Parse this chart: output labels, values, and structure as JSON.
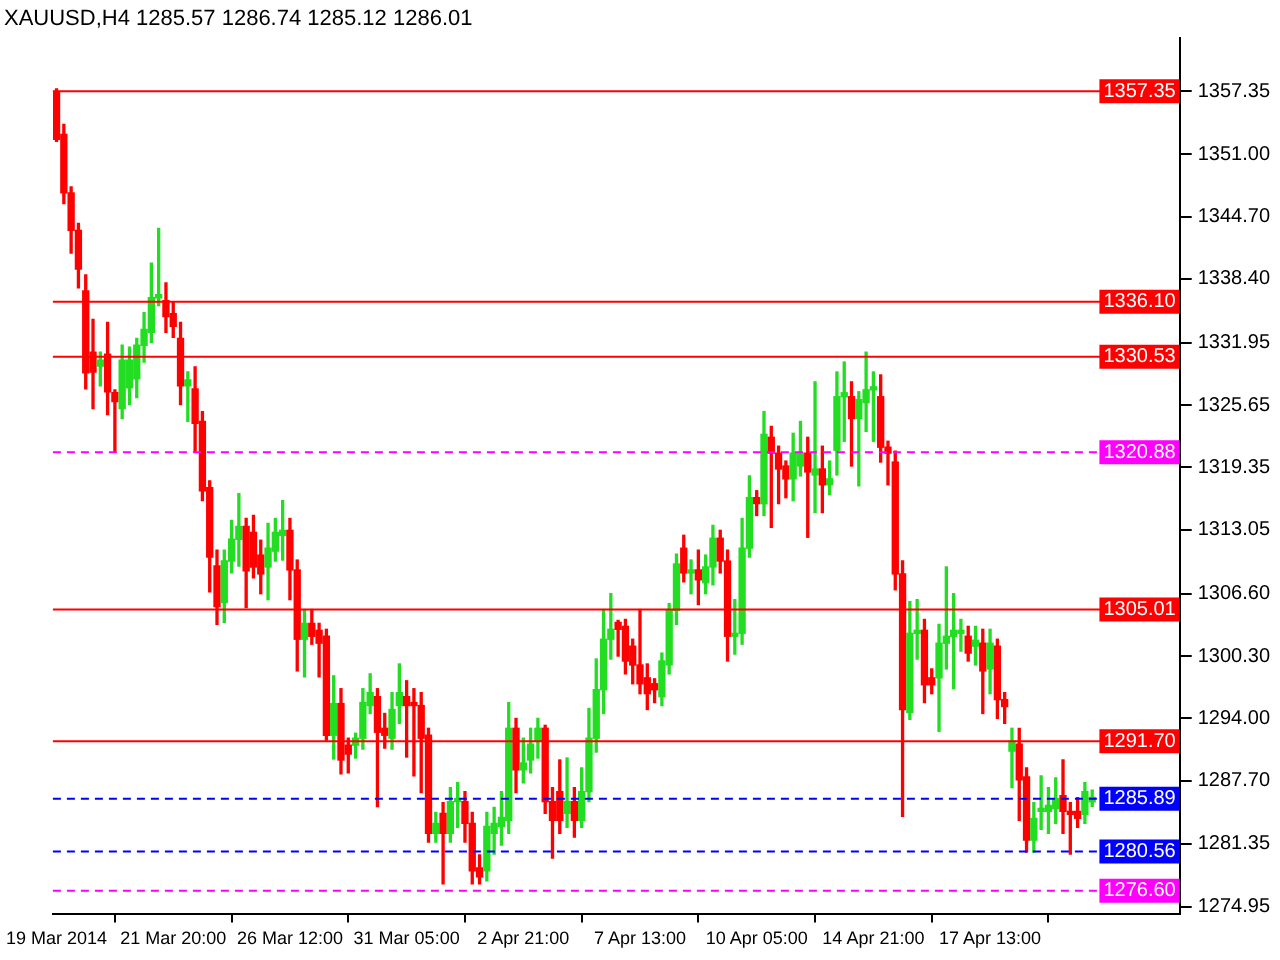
{
  "chart_data": {
    "type": "candlestick",
    "title": "XAUUSD,H4 1285.57 1286.74 1285.12 1286.01",
    "categories": [
      "19 Mar 2014",
      null,
      null,
      null,
      null,
      null,
      null,
      null,
      null,
      null,
      null,
      null,
      null,
      null,
      null,
      null,
      "21 Mar 20:00",
      null,
      null,
      null,
      null,
      null,
      null,
      null,
      null,
      null,
      null,
      null,
      null,
      null,
      null,
      null,
      "26 Mar 12:00",
      null,
      null,
      null,
      null,
      null,
      null,
      null,
      null,
      null,
      null,
      null,
      null,
      null,
      null,
      null,
      "31 Mar 05:00",
      null,
      null,
      null,
      null,
      null,
      null,
      null,
      null,
      null,
      null,
      null,
      null,
      null,
      null,
      null,
      "2 Apr 21:00",
      null,
      null,
      null,
      null,
      null,
      null,
      null,
      null,
      null,
      null,
      null,
      null,
      null,
      null,
      null,
      "7 Apr 13:00",
      null,
      null,
      null,
      null,
      null,
      null,
      null,
      null,
      null,
      null,
      null,
      null,
      null,
      null,
      null,
      "10 Apr 05:00",
      null,
      null,
      null,
      null,
      null,
      null,
      null,
      null,
      null,
      null,
      null,
      null,
      null,
      null,
      null,
      "14 Apr 21:00",
      null,
      null,
      null,
      null,
      null,
      null,
      null,
      null,
      null,
      null,
      null,
      null,
      null,
      null,
      null,
      "17 Apr 13:00",
      null,
      null,
      null,
      null,
      null,
      null,
      null,
      null,
      null,
      null,
      null,
      null,
      null,
      null
    ],
    "ohlc": [
      [
        1357.3,
        1357.6,
        1352.3,
        1352.5
      ],
      [
        1353.0,
        1354.0,
        1346.0,
        1347.1
      ],
      [
        1347.1,
        1347.7,
        1341.0,
        1343.3
      ],
      [
        1343.3,
        1344.0,
        1337.5,
        1339.4
      ],
      [
        1337.2,
        1338.8,
        1327.3,
        1328.9
      ],
      [
        1331.0,
        1334.3,
        1325.3,
        1329.0
      ],
      [
        1329.6,
        1331.0,
        1327.6,
        1330.2
      ],
      [
        1330.8,
        1334.0,
        1324.7,
        1327.0
      ],
      [
        1326.9,
        1327.2,
        1320.9,
        1326.0
      ],
      [
        1325.3,
        1331.7,
        1324.3,
        1330.2
      ],
      [
        1327.4,
        1331.5,
        1325.7,
        1330.2
      ],
      [
        1328.3,
        1332.4,
        1326.4,
        1331.7
      ],
      [
        1331.7,
        1335.0,
        1330.0,
        1333.3
      ],
      [
        1333.0,
        1340.0,
        1332.0,
        1336.5
      ],
      [
        1336.5,
        1343.5,
        1335.7,
        1336.8
      ],
      [
        1336.2,
        1338.0,
        1333.0,
        1334.6
      ],
      [
        1334.9,
        1336.0,
        1332.5,
        1333.6
      ],
      [
        1332.4,
        1334.0,
        1325.7,
        1327.6
      ],
      [
        1327.6,
        1329.0,
        1324.0,
        1328.2
      ],
      [
        1327.3,
        1329.5,
        1320.9,
        1323.8
      ],
      [
        1324.0,
        1325.0,
        1316.0,
        1317.0
      ],
      [
        1317.3,
        1318.0,
        1306.8,
        1310.3
      ],
      [
        1309.4,
        1311.0,
        1303.5,
        1305.3
      ],
      [
        1305.7,
        1311.0,
        1303.7,
        1309.9
      ],
      [
        1309.9,
        1314.0,
        1308.7,
        1312.1
      ],
      [
        1312.1,
        1316.7,
        1309.4,
        1313.4
      ],
      [
        1313.4,
        1314.2,
        1305.2,
        1308.9
      ],
      [
        1312.8,
        1314.5,
        1308.2,
        1309.3
      ],
      [
        1310.5,
        1312.0,
        1306.6,
        1308.6
      ],
      [
        1309.3,
        1313.7,
        1306.0,
        1311.2
      ],
      [
        1310.9,
        1314.2,
        1309.9,
        1312.8
      ],
      [
        1312.5,
        1316.0,
        1310.0,
        1313.0
      ],
      [
        1313.0,
        1314.2,
        1306.0,
        1309.0
      ],
      [
        1309.0,
        1310.0,
        1298.8,
        1302.0
      ],
      [
        1302.0,
        1305.0,
        1298.2,
        1303.6
      ],
      [
        1303.6,
        1305.0,
        1301.5,
        1302.3
      ],
      [
        1302.9,
        1303.6,
        1298.2,
        1301.6
      ],
      [
        1302.3,
        1303.0,
        1291.8,
        1292.3
      ],
      [
        1292.3,
        1298.3,
        1289.9,
        1295.5
      ],
      [
        1295.5,
        1297.0,
        1288.4,
        1289.8
      ],
      [
        1291.3,
        1292.0,
        1288.5,
        1290.4
      ],
      [
        1291.3,
        1292.5,
        1290.0,
        1292.0
      ],
      [
        1292.0,
        1297.0,
        1290.9,
        1295.6
      ],
      [
        1295.3,
        1298.5,
        1294.5,
        1296.6
      ],
      [
        1296.2,
        1297.0,
        1285.1,
        1292.6
      ],
      [
        1293.0,
        1294.5,
        1291.0,
        1292.3
      ],
      [
        1292.0,
        1296.6,
        1290.9,
        1294.9
      ],
      [
        1295.3,
        1299.5,
        1293.5,
        1296.6
      ],
      [
        1296.2,
        1297.8,
        1290.1,
        1295.3
      ],
      [
        1295.6,
        1297.0,
        1288.2,
        1295.3
      ],
      [
        1295.3,
        1296.6,
        1286.5,
        1292.0
      ],
      [
        1292.3,
        1293.0,
        1281.5,
        1282.4
      ],
      [
        1282.4,
        1284.5,
        1281.5,
        1283.4
      ],
      [
        1284.4,
        1285.5,
        1277.3,
        1282.4
      ],
      [
        1282.4,
        1287.0,
        1281.5,
        1285.6
      ],
      [
        1285.6,
        1287.5,
        1283.0,
        1285.9
      ],
      [
        1285.6,
        1286.6,
        1281.5,
        1283.4
      ],
      [
        1283.4,
        1284.5,
        1277.3,
        1278.6
      ],
      [
        1278.9,
        1280.2,
        1277.3,
        1278.0
      ],
      [
        1278.6,
        1284.5,
        1277.6,
        1283.1
      ],
      [
        1282.4,
        1285.0,
        1280.3,
        1283.4
      ],
      [
        1283.1,
        1286.6,
        1281.2,
        1284.0
      ],
      [
        1283.7,
        1295.6,
        1282.4,
        1293.0
      ],
      [
        1293.0,
        1294.0,
        1286.5,
        1288.8
      ],
      [
        1288.8,
        1292.0,
        1287.5,
        1289.5
      ],
      [
        1289.8,
        1293.0,
        1288.5,
        1291.4
      ],
      [
        1291.7,
        1294.0,
        1290.0,
        1293.0
      ],
      [
        1293.0,
        1293.3,
        1284.4,
        1285.6
      ],
      [
        1285.6,
        1287.0,
        1279.9,
        1283.7
      ],
      [
        1286.6,
        1289.8,
        1282.4,
        1283.7
      ],
      [
        1284.4,
        1290.0,
        1283.0,
        1285.6
      ],
      [
        1285.6,
        1287.0,
        1282.0,
        1283.7
      ],
      [
        1283.7,
        1289.0,
        1283.0,
        1286.6
      ],
      [
        1286.6,
        1295.0,
        1285.6,
        1292.0
      ],
      [
        1292.0,
        1300.0,
        1290.6,
        1296.9
      ],
      [
        1296.9,
        1305.0,
        1294.5,
        1302.0
      ],
      [
        1302.0,
        1306.6,
        1300.0,
        1303.0
      ],
      [
        1303.7,
        1303.9,
        1300.3,
        1303.0
      ],
      [
        1303.3,
        1304.0,
        1298.5,
        1299.8
      ],
      [
        1301.3,
        1302.0,
        1297.5,
        1299.4
      ],
      [
        1299.4,
        1305.0,
        1296.5,
        1297.5
      ],
      [
        1298.1,
        1299.5,
        1294.9,
        1296.5
      ],
      [
        1297.5,
        1298.0,
        1295.6,
        1296.9
      ],
      [
        1296.2,
        1300.6,
        1295.3,
        1299.8
      ],
      [
        1299.4,
        1305.6,
        1298.5,
        1304.9
      ],
      [
        1304.9,
        1310.6,
        1303.5,
        1309.6
      ],
      [
        1311.2,
        1312.5,
        1307.8,
        1308.7
      ],
      [
        1308.7,
        1310.0,
        1306.6,
        1309.0
      ],
      [
        1309.0,
        1311.0,
        1305.5,
        1308.0
      ],
      [
        1307.7,
        1310.5,
        1306.6,
        1309.3
      ],
      [
        1309.3,
        1313.5,
        1307.5,
        1312.2
      ],
      [
        1312.2,
        1313.0,
        1308.7,
        1309.9
      ],
      [
        1309.9,
        1311.0,
        1299.8,
        1302.3
      ],
      [
        1302.3,
        1306.0,
        1300.5,
        1302.6
      ],
      [
        1302.6,
        1314.2,
        1301.5,
        1311.2
      ],
      [
        1311.2,
        1318.5,
        1310.3,
        1316.3
      ],
      [
        1316.3,
        1317.0,
        1314.5,
        1315.7
      ],
      [
        1315.7,
        1325.0,
        1314.5,
        1322.7
      ],
      [
        1322.4,
        1323.5,
        1313.3,
        1320.8
      ],
      [
        1320.8,
        1321.5,
        1315.7,
        1319.2
      ],
      [
        1319.5,
        1320.0,
        1316.3,
        1318.2
      ],
      [
        1318.2,
        1322.8,
        1316.0,
        1320.8
      ],
      [
        1319.5,
        1324.0,
        1318.5,
        1320.8
      ],
      [
        1320.8,
        1322.4,
        1312.3,
        1318.9
      ],
      [
        1318.6,
        1328.0,
        1314.8,
        1319.2
      ],
      [
        1319.2,
        1321.5,
        1314.8,
        1317.6
      ],
      [
        1317.6,
        1320.0,
        1316.6,
        1318.2
      ],
      [
        1321.1,
        1329.0,
        1318.6,
        1326.5
      ],
      [
        1326.5,
        1330.0,
        1322.0,
        1326.9
      ],
      [
        1326.5,
        1328.0,
        1319.5,
        1324.3
      ],
      [
        1324.3,
        1327.0,
        1317.5,
        1326.2
      ],
      [
        1325.9,
        1331.0,
        1323.0,
        1327.2
      ],
      [
        1327.2,
        1329.0,
        1322.0,
        1327.5
      ],
      [
        1326.5,
        1328.7,
        1319.9,
        1321.4
      ],
      [
        1321.4,
        1322.0,
        1317.6,
        1320.8
      ],
      [
        1319.9,
        1321.0,
        1307.0,
        1308.6
      ],
      [
        1308.6,
        1309.9,
        1284.1,
        1294.9
      ],
      [
        1294.6,
        1305.8,
        1293.9,
        1302.6
      ],
      [
        1302.6,
        1306.0,
        1300.0,
        1302.9
      ],
      [
        1302.9,
        1304.0,
        1295.6,
        1297.4
      ],
      [
        1298.1,
        1299.0,
        1296.5,
        1297.4
      ],
      [
        1298.1,
        1303.5,
        1292.7,
        1301.6
      ],
      [
        1301.6,
        1309.3,
        1299.0,
        1302.3
      ],
      [
        1302.3,
        1306.6,
        1297.0,
        1302.9
      ],
      [
        1302.6,
        1304.0,
        1300.8,
        1302.9
      ],
      [
        1302.3,
        1303.3,
        1299.8,
        1300.6
      ],
      [
        1301.3,
        1303.3,
        1299.4,
        1301.9
      ],
      [
        1301.6,
        1303.0,
        1294.5,
        1298.8
      ],
      [
        1299.0,
        1303.0,
        1296.5,
        1301.6
      ],
      [
        1301.3,
        1302.0,
        1294.0,
        1295.9
      ],
      [
        1295.9,
        1296.6,
        1293.5,
        1295.2
      ],
      [
        1290.7,
        1293.0,
        1287.0,
        1291.7
      ],
      [
        1291.4,
        1293.0,
        1283.7,
        1287.8
      ],
      [
        1288.1,
        1289.0,
        1280.5,
        1281.7
      ],
      [
        1281.7,
        1285.5,
        1280.5,
        1283.9
      ],
      [
        1284.6,
        1288.2,
        1282.8,
        1284.9
      ],
      [
        1284.6,
        1287.0,
        1282.4,
        1285.2
      ],
      [
        1284.9,
        1288.0,
        1283.4,
        1285.9
      ],
      [
        1286.2,
        1289.8,
        1282.4,
        1284.6
      ],
      [
        1284.6,
        1285.5,
        1280.3,
        1284.3
      ],
      [
        1284.6,
        1286.0,
        1283.0,
        1283.9
      ],
      [
        1284.3,
        1287.5,
        1283.4,
        1286.6
      ],
      [
        1285.57,
        1286.74,
        1285.12,
        1286.01
      ]
    ],
    "ylim": [
      1274.2,
      1362.7
    ],
    "yticks": [
      {
        "value": 1357.35,
        "label": "1357.35"
      },
      {
        "value": 1351,
        "label": "1351.00"
      },
      {
        "value": 1344.7,
        "label": "1344.70"
      },
      {
        "value": 1338.4,
        "label": "1338.40"
      },
      {
        "value": 1331.95,
        "label": "1331.95"
      },
      {
        "value": 1325.65,
        "label": "1325.65"
      },
      {
        "value": 1319.35,
        "label": "1319.35"
      },
      {
        "value": 1313.05,
        "label": "1313.05"
      },
      {
        "value": 1306.6,
        "label": "1306.60"
      },
      {
        "value": 1300.3,
        "label": "1300.30"
      },
      {
        "value": 1294,
        "label": "1294.00"
      },
      {
        "value": 1287.7,
        "label": "1287.70"
      },
      {
        "value": 1281.35,
        "label": "1281.35"
      },
      {
        "value": 1274.95,
        "label": "1274.95"
      }
    ],
    "ref_lines": [
      {
        "axis": "y",
        "value": 1357.35,
        "label": "1357.35",
        "color": "#ff0000",
        "line_style": "solid"
      },
      {
        "axis": "y",
        "value": 1336.1,
        "label": "1336.10",
        "color": "#ff0000",
        "line_style": "solid"
      },
      {
        "axis": "y",
        "value": 1330.53,
        "label": "1330.53",
        "color": "#ff0000",
        "line_style": "solid"
      },
      {
        "axis": "y",
        "value": 1320.88,
        "label": "1320.88",
        "color": "#ff00ff",
        "line_style": "dashed"
      },
      {
        "axis": "y",
        "value": 1305.01,
        "label": "1305.01",
        "color": "#ff0000",
        "line_style": "solid"
      },
      {
        "axis": "y",
        "value": 1291.7,
        "label": "1291.70",
        "color": "#ff0000",
        "line_style": "solid"
      },
      {
        "axis": "y",
        "value": 1285.89,
        "label": "1285.89",
        "color": "#0000ff",
        "line_style": "dashed"
      },
      {
        "axis": "y",
        "value": 1280.56,
        "label": "1280.56",
        "color": "#0000ff",
        "line_style": "dashed"
      },
      {
        "axis": "y",
        "value": 1276.6,
        "label": "1276.60",
        "color": "#ff00ff",
        "line_style": "dashed"
      }
    ],
    "grid": false,
    "legend": false
  }
}
